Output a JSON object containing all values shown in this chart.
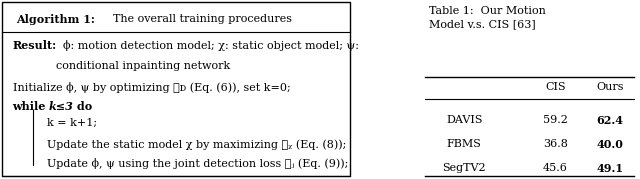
{
  "algo_title_bold": "Algorithm 1:",
  "algo_title_rest": " The overall training procedures",
  "table_title": "Table 1:  Our Motion\nModel v.s. CIS [63]",
  "col_headers": [
    "",
    "CIS",
    "Ours"
  ],
  "rows": [
    [
      "DAVIS",
      "59.2",
      "62.4"
    ],
    [
      "FBMS",
      "36.8",
      "40.0"
    ],
    [
      "SegTV2",
      "45.6",
      "49.1"
    ]
  ],
  "bg_color": "#ffffff",
  "font_size": 8.0
}
